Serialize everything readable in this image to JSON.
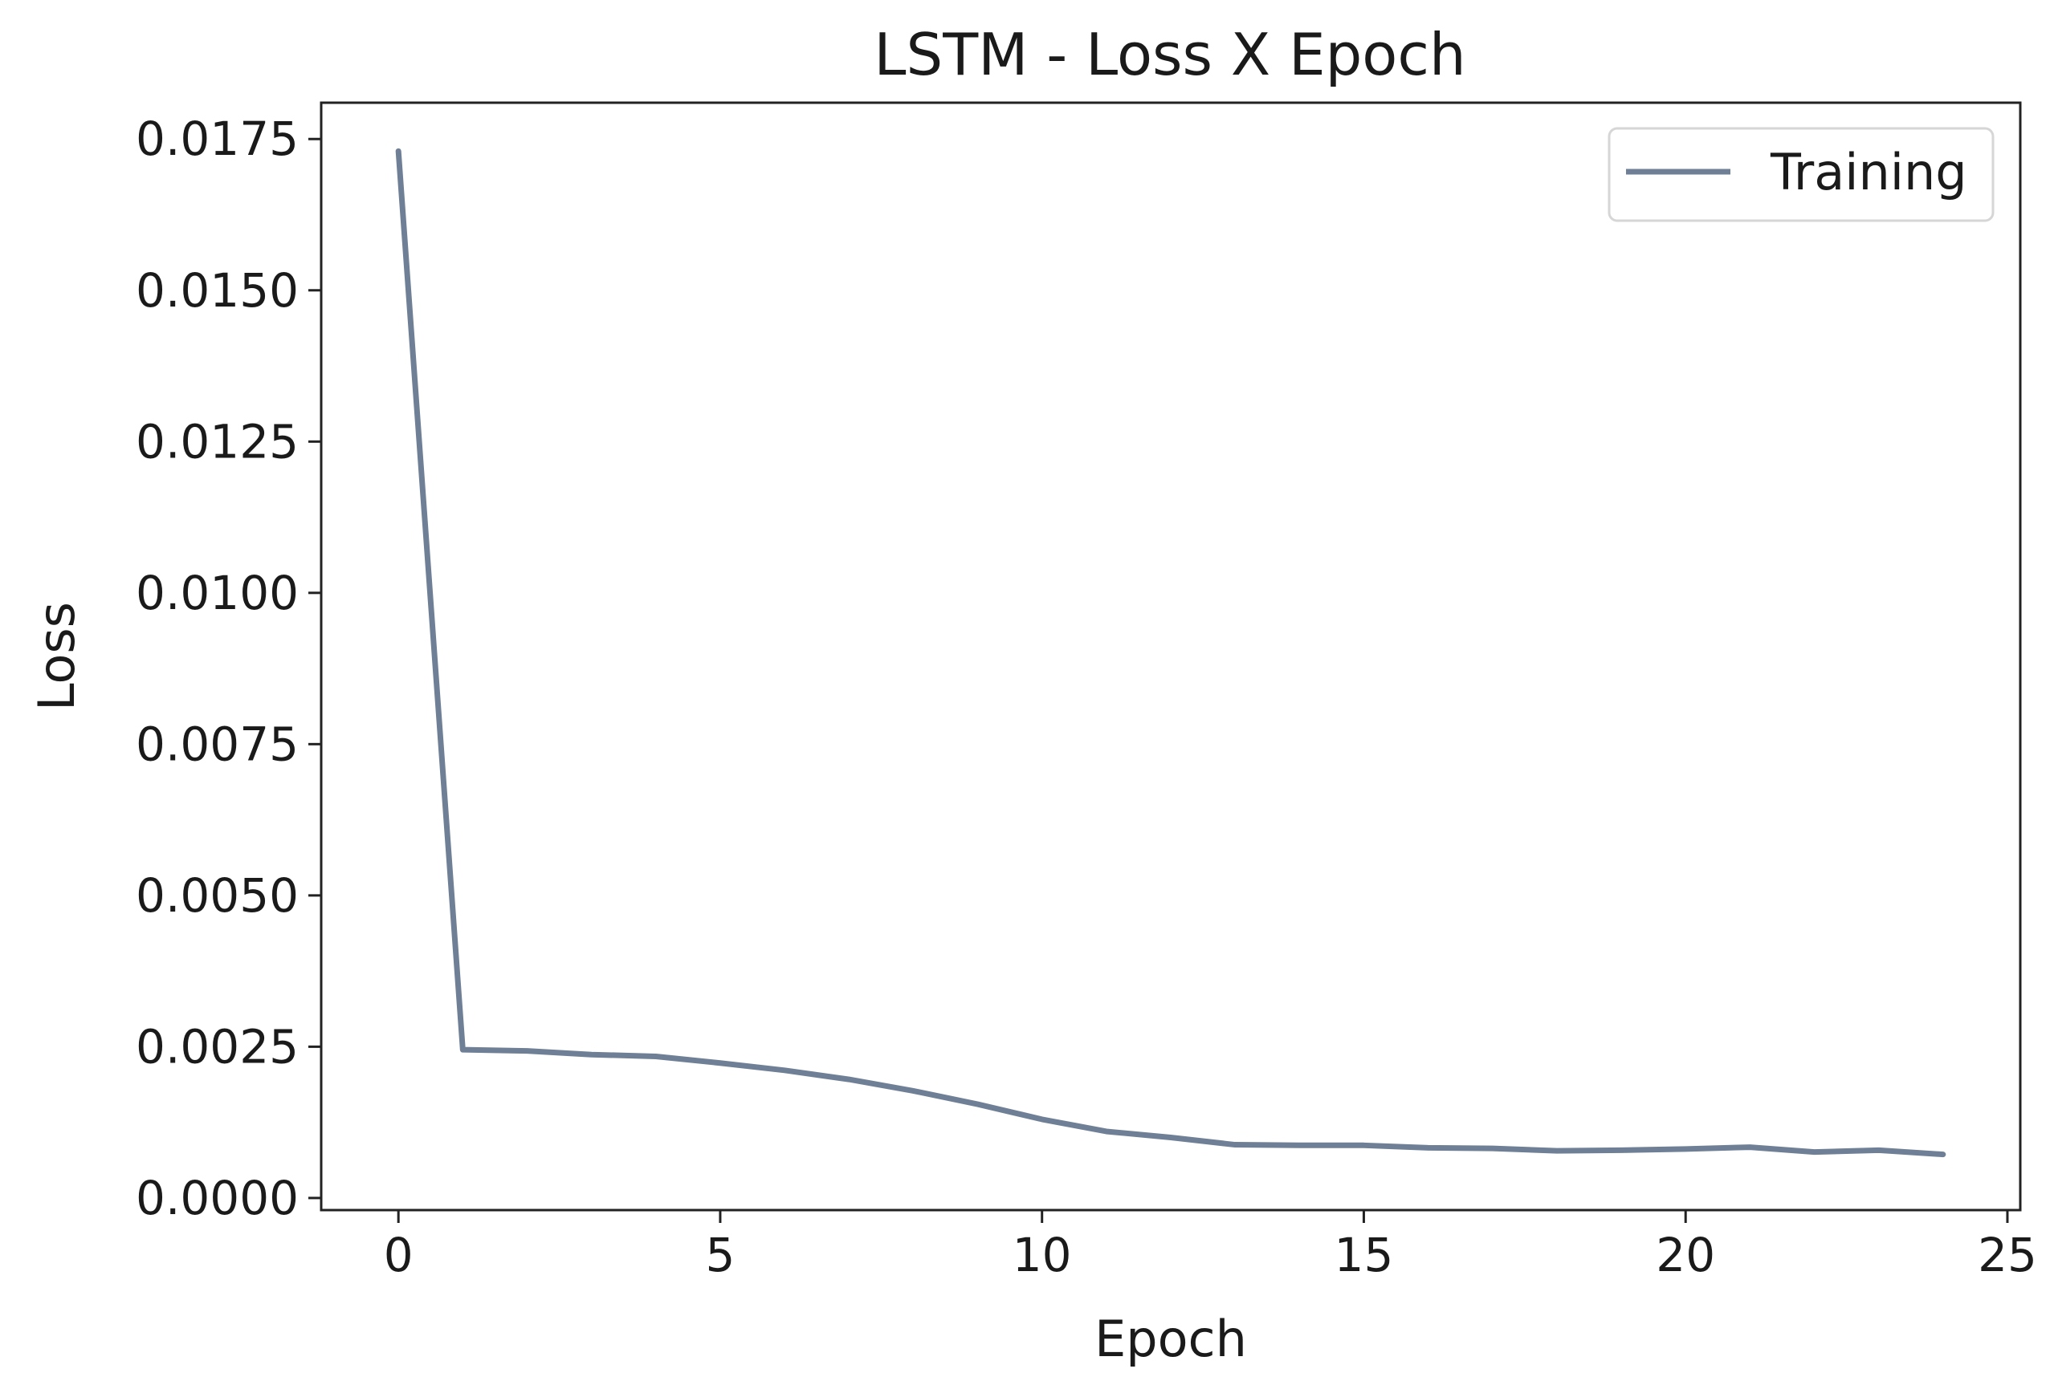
{
  "chart_data": {
    "type": "line",
    "title": "LSTM - Loss X Epoch",
    "xlabel": "Epoch",
    "ylabel": "Loss",
    "xlim": [
      -1.2,
      25.2
    ],
    "ylim": [
      -0.0002,
      0.0181
    ],
    "x_ticks": [
      0,
      5,
      10,
      15,
      20,
      25
    ],
    "x_tick_labels": [
      "0",
      "5",
      "10",
      "15",
      "20",
      "25"
    ],
    "y_ticks": [
      0.0,
      0.0025,
      0.005,
      0.0075,
      0.01,
      0.0125,
      0.015,
      0.0175
    ],
    "y_tick_labels": [
      "0.0000",
      "0.0025",
      "0.0050",
      "0.0075",
      "0.0100",
      "0.0125",
      "0.0150",
      "0.0175"
    ],
    "grid": false,
    "legend": {
      "placement": "top-right",
      "entries": [
        "Training"
      ]
    },
    "series": [
      {
        "name": "Training",
        "color": "#6f7f96",
        "x": [
          0,
          1,
          2,
          3,
          4,
          5,
          6,
          7,
          8,
          9,
          10,
          11,
          12,
          13,
          14,
          15,
          16,
          17,
          18,
          19,
          20,
          21,
          22,
          23,
          24
        ],
        "values": [
          0.0173,
          0.00245,
          0.00243,
          0.00237,
          0.00234,
          0.00223,
          0.00211,
          0.00196,
          0.00177,
          0.00155,
          0.0013,
          0.0011,
          0.001,
          0.00088,
          0.00087,
          0.00087,
          0.00083,
          0.00082,
          0.00078,
          0.00079,
          0.00081,
          0.00084,
          0.00076,
          0.00079,
          0.00072
        ]
      }
    ]
  }
}
